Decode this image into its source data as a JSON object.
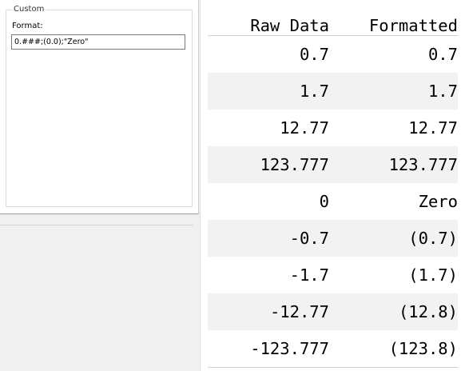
{
  "panel": {
    "group_title": "Custom",
    "format_label": "Format:",
    "format_value": "0.###;(0.0);\"Zero\""
  },
  "table": {
    "headers": [
      "Raw Data",
      "Formatted"
    ],
    "rows": [
      [
        "0.7",
        "0.7"
      ],
      [
        "1.7",
        "1.7"
      ],
      [
        "12.77",
        "12.77"
      ],
      [
        "123.777",
        "123.777"
      ],
      [
        "0",
        "Zero"
      ],
      [
        "-0.7",
        "(0.7)"
      ],
      [
        "-1.7",
        "(1.7)"
      ],
      [
        "-12.77",
        "(12.8)"
      ],
      [
        "-123.777",
        "(123.8)"
      ]
    ]
  }
}
